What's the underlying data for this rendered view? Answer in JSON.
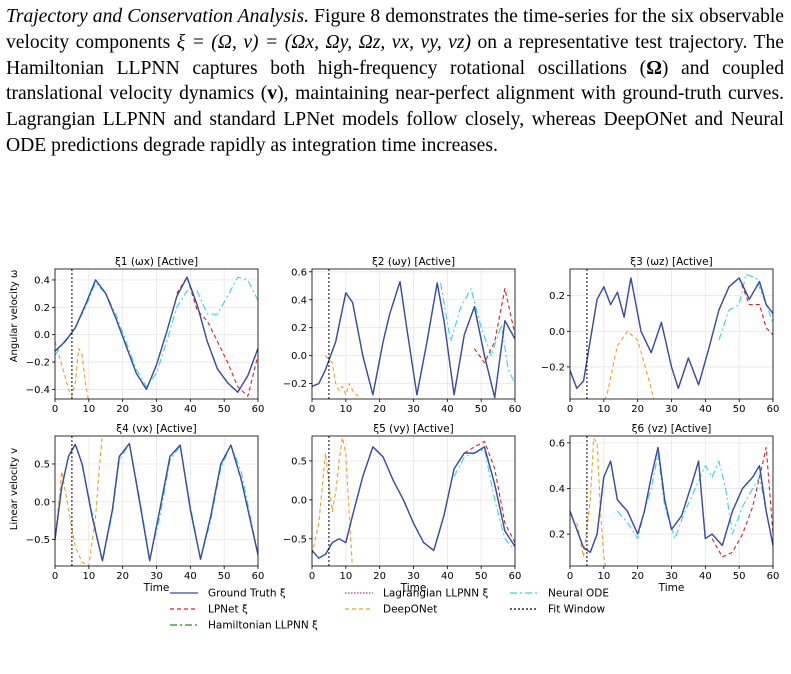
{
  "paragraph": {
    "lead": "Trajectory and Conservation Analysis.",
    "s1": " Figure 8 demonstrates the time-series for the six observable velocity components ",
    "s1_math": "ξ = (Ω, v) = (Ωx, Ωy, Ωz, vx, vy, vz)",
    "s2": " on a representative test trajectory. The Hamiltonian LLPNN captures both high-frequency rotational oscillations (",
    "s2_omega": "Ω",
    "s3": ") and coupled translational velocity dynamics (",
    "s3_v": "v",
    "s4": "), maintaining near-perfect alignment with ground-truth curves. Lagrangian LLPNN and standard LPNet models follow closely, whereas DeepONet and Neural ODE predictions degrade rapidly as integration time increases."
  },
  "figure": {
    "row_labels": [
      "Angular velocity ω",
      "Linear velocity v"
    ],
    "xlabel": "Time",
    "fit_window_end": 5,
    "xlim": [
      0,
      60
    ],
    "xticks": [
      0,
      10,
      20,
      30,
      40,
      50,
      60
    ]
  },
  "chart_data": [
    {
      "type": "line",
      "title": "ξ1 (ωx) [Active]",
      "ylim": [
        -0.47,
        0.48
      ],
      "yticks": [
        -0.4,
        -0.2,
        0.0,
        0.2,
        0.4
      ],
      "ytick_labels": [
        "−0.4",
        "−0.2",
        "0.0",
        "0.2",
        "0.4"
      ],
      "xlabel": "",
      "series": [
        {
          "name": "Ground Truth ξ",
          "x": [
            0,
            3,
            6,
            9,
            12,
            15,
            18,
            21,
            24,
            27,
            30,
            33,
            36,
            39,
            42,
            45,
            48,
            51,
            54,
            57,
            60
          ],
          "y": [
            -0.12,
            -0.05,
            0.05,
            0.22,
            0.4,
            0.3,
            0.12,
            -0.08,
            -0.28,
            -0.4,
            -0.22,
            0.02,
            0.28,
            0.42,
            0.22,
            -0.05,
            -0.25,
            -0.35,
            -0.42,
            -0.3,
            -0.1
          ]
        },
        {
          "name": "Neural ODE",
          "x": [
            0,
            3,
            6,
            9,
            12,
            15,
            18,
            21,
            24,
            27,
            30,
            33,
            36,
            39,
            42,
            45,
            48,
            51,
            54,
            57,
            60
          ],
          "y": [
            -0.15,
            -0.04,
            0.05,
            0.2,
            0.38,
            0.3,
            0.15,
            -0.05,
            -0.25,
            -0.38,
            -0.28,
            -0.05,
            0.2,
            0.32,
            0.32,
            0.15,
            0.15,
            0.28,
            0.42,
            0.4,
            0.25
          ]
        },
        {
          "name": "DeepONet",
          "x": [
            0,
            2,
            4,
            5,
            6,
            7,
            8,
            9,
            10
          ],
          "y": [
            -0.05,
            -0.22,
            -0.4,
            -0.45,
            -0.35,
            -0.1,
            -0.15,
            -0.35,
            -0.5
          ]
        },
        {
          "name": "LPNet ξ",
          "x": [
            36,
            39,
            42,
            45,
            48,
            51,
            54,
            57,
            60
          ],
          "y": [
            0.3,
            0.42,
            0.18,
            0.1,
            -0.05,
            -0.2,
            -0.38,
            -0.45,
            -0.15
          ]
        }
      ]
    },
    {
      "type": "line",
      "title": "ξ2 (ωy) [Active]",
      "ylim": [
        -0.31,
        0.62
      ],
      "yticks": [
        -0.2,
        0.0,
        0.2,
        0.4,
        0.6
      ],
      "ytick_labels": [
        "−0.2",
        "0.0",
        "0.2",
        "0.4",
        "0.6"
      ],
      "xlabel": "",
      "series": [
        {
          "name": "Ground Truth ξ",
          "x": [
            0,
            2,
            4,
            7,
            10,
            12,
            15,
            18,
            21,
            23,
            26,
            28,
            31,
            34,
            37,
            39,
            42,
            45,
            48,
            51,
            54,
            57,
            60
          ],
          "y": [
            -0.22,
            -0.2,
            -0.1,
            0.1,
            0.45,
            0.38,
            0.0,
            -0.28,
            0.1,
            0.3,
            0.53,
            0.2,
            -0.28,
            0.1,
            0.52,
            0.25,
            -0.28,
            0.15,
            0.35,
            0.0,
            -0.3,
            0.25,
            0.12
          ]
        },
        {
          "name": "Neural ODE",
          "x": [
            38,
            41,
            44,
            47,
            50,
            53,
            56,
            58,
            60
          ],
          "y": [
            0.52,
            0.1,
            0.35,
            0.48,
            0.2,
            0.0,
            0.22,
            -0.1,
            -0.2
          ]
        },
        {
          "name": "DeepONet",
          "x": [
            4,
            6,
            7,
            8,
            9,
            10,
            11,
            12,
            14
          ],
          "y": [
            0.0,
            -0.05,
            -0.2,
            -0.25,
            -0.22,
            -0.28,
            -0.2,
            -0.25,
            -0.3
          ]
        },
        {
          "name": "LPNet ξ",
          "x": [
            48,
            51,
            54,
            57,
            60
          ],
          "y": [
            0.05,
            -0.05,
            0.1,
            0.48,
            0.15
          ]
        }
      ]
    },
    {
      "type": "line",
      "title": "ξ3 (ωz) [Active]",
      "ylim": [
        -0.38,
        0.35
      ],
      "yticks": [
        -0.2,
        0.0,
        0.2
      ],
      "ytick_labels": [
        "−0.2",
        "0.0",
        "0.2"
      ],
      "xlabel": "",
      "series": [
        {
          "name": "Ground Truth ξ",
          "x": [
            0,
            2,
            4,
            6,
            8,
            10,
            12,
            14,
            16,
            18,
            21,
            24,
            27,
            30,
            32,
            35,
            38,
            41,
            44,
            47,
            50,
            53,
            56,
            58,
            60
          ],
          "y": [
            -0.22,
            -0.32,
            -0.28,
            -0.05,
            0.18,
            0.25,
            0.15,
            0.22,
            0.08,
            0.3,
            0.0,
            -0.12,
            0.05,
            -0.2,
            -0.32,
            -0.15,
            -0.3,
            -0.1,
            0.12,
            0.25,
            0.3,
            0.18,
            0.28,
            0.15,
            0.1
          ]
        },
        {
          "name": "Neural ODE",
          "x": [
            44,
            47,
            50,
            52,
            55,
            58,
            60
          ],
          "y": [
            -0.05,
            0.12,
            0.15,
            0.32,
            0.3,
            0.15,
            0.05
          ]
        },
        {
          "name": "DeepONet",
          "x": [
            5,
            8,
            11,
            14,
            17,
            20,
            23,
            25
          ],
          "y": [
            -0.4,
            -0.5,
            -0.35,
            -0.08,
            0.0,
            -0.05,
            -0.25,
            -0.4
          ]
        },
        {
          "name": "LPNet ξ",
          "x": [
            50,
            53,
            56,
            58,
            60
          ],
          "y": [
            0.3,
            0.15,
            0.15,
            0.02,
            -0.02
          ]
        }
      ]
    },
    {
      "type": "line",
      "title": "ξ4 (vx) [Active]",
      "ylim": [
        -0.85,
        0.87
      ],
      "yticks": [
        -0.5,
        0.0,
        0.5
      ],
      "ytick_labels": [
        "−0.5",
        "0.0",
        "0.5"
      ],
      "xlabel": "Time",
      "series": [
        {
          "name": "Ground Truth ξ",
          "x": [
            0,
            2,
            4,
            6,
            8,
            11,
            14,
            17,
            19,
            22,
            25,
            28,
            31,
            34,
            37,
            40,
            43,
            46,
            49,
            52,
            55,
            58,
            60
          ],
          "y": [
            -0.5,
            0.2,
            0.6,
            0.76,
            0.5,
            -0.2,
            -0.78,
            -0.1,
            0.6,
            0.77,
            0.0,
            -0.78,
            -0.1,
            0.6,
            0.75,
            -0.1,
            -0.76,
            -0.2,
            0.5,
            0.75,
            0.3,
            -0.3,
            -0.7
          ]
        },
        {
          "name": "Neural ODE",
          "x": [
            0,
            2,
            4,
            6,
            8,
            11,
            14,
            17,
            19,
            22,
            25,
            28,
            31,
            34,
            37,
            40,
            43,
            46,
            49,
            52,
            55,
            58,
            60
          ],
          "y": [
            -0.5,
            0.2,
            0.6,
            0.76,
            0.5,
            -0.15,
            -0.8,
            -0.15,
            0.55,
            0.77,
            0.05,
            -0.76,
            -0.2,
            0.55,
            0.74,
            -0.05,
            -0.76,
            -0.25,
            0.45,
            0.75,
            0.4,
            -0.25,
            -0.7
          ]
        },
        {
          "name": "DeepONet",
          "x": [
            0,
            2,
            4,
            6,
            8,
            10,
            12,
            13,
            14
          ],
          "y": [
            -0.5,
            0.4,
            -0.1,
            -0.6,
            -0.8,
            -0.85,
            -0.2,
            0.4,
            0.9
          ]
        }
      ]
    },
    {
      "type": "line",
      "title": "ξ5 (vy) [Active]",
      "ylim": [
        -0.85,
        0.82
      ],
      "yticks": [
        -0.5,
        0.0,
        0.5
      ],
      "ytick_labels": [
        "−0.5",
        "0.0",
        "0.5"
      ],
      "xlabel": "Time",
      "series": [
        {
          "name": "Ground Truth ξ",
          "x": [
            0,
            2,
            4,
            6,
            8,
            10,
            12,
            15,
            18,
            21,
            24,
            27,
            30,
            33,
            36,
            39,
            42,
            45,
            48,
            51,
            54,
            57,
            60
          ],
          "y": [
            -0.65,
            -0.75,
            -0.7,
            -0.55,
            -0.5,
            -0.55,
            -0.2,
            0.3,
            0.68,
            0.55,
            0.25,
            0.0,
            -0.3,
            -0.55,
            -0.65,
            -0.2,
            0.4,
            0.6,
            0.6,
            0.68,
            0.2,
            -0.4,
            -0.6
          ]
        },
        {
          "name": "Neural ODE",
          "x": [
            42,
            45,
            48,
            51,
            54,
            57,
            60
          ],
          "y": [
            0.3,
            0.55,
            0.6,
            0.65,
            0.0,
            -0.5,
            -0.65
          ]
        },
        {
          "name": "DeepONet",
          "x": [
            0,
            2,
            4,
            5,
            6,
            7,
            8,
            9,
            10,
            11,
            12
          ],
          "y": [
            -0.7,
            -0.3,
            0.6,
            0.2,
            -0.15,
            0.1,
            0.5,
            0.8,
            0.6,
            -0.2,
            -0.9
          ]
        },
        {
          "name": "LPNet ξ",
          "x": [
            45,
            48,
            51,
            54,
            57,
            60
          ],
          "y": [
            0.6,
            0.68,
            0.75,
            0.4,
            -0.3,
            -0.55
          ]
        }
      ]
    },
    {
      "type": "line",
      "title": "ξ6 (vz) [Active]",
      "ylim": [
        0.06,
        0.63
      ],
      "yticks": [
        0.2,
        0.4,
        0.6
      ],
      "ytick_labels": [
        "0.2",
        "0.4",
        "0.6"
      ],
      "xlabel": "Time",
      "series": [
        {
          "name": "Ground Truth ξ",
          "x": [
            0,
            2,
            4,
            6,
            8,
            10,
            12,
            14,
            17,
            20,
            22,
            24,
            26,
            28,
            30,
            33,
            36,
            38,
            40,
            42,
            45,
            48,
            51,
            54,
            56,
            58,
            60
          ],
          "y": [
            0.3,
            0.22,
            0.14,
            0.12,
            0.2,
            0.45,
            0.52,
            0.35,
            0.3,
            0.2,
            0.3,
            0.45,
            0.58,
            0.35,
            0.22,
            0.28,
            0.42,
            0.52,
            0.18,
            0.2,
            0.15,
            0.3,
            0.4,
            0.45,
            0.5,
            0.3,
            0.15
          ]
        },
        {
          "name": "Neural ODE",
          "x": [
            14,
            17,
            20,
            22,
            24,
            26,
            28,
            31,
            34,
            37,
            40,
            42,
            44,
            46,
            48,
            51,
            54,
            56,
            58,
            60
          ],
          "y": [
            0.3,
            0.25,
            0.18,
            0.3,
            0.4,
            0.55,
            0.32,
            0.18,
            0.3,
            0.4,
            0.5,
            0.45,
            0.52,
            0.4,
            0.2,
            0.32,
            0.4,
            0.45,
            0.3,
            0.15
          ]
        },
        {
          "name": "DeepONet",
          "x": [
            2,
            4,
            6,
            7,
            8,
            9,
            10,
            11
          ],
          "y": [
            0.25,
            0.1,
            0.35,
            0.62,
            0.6,
            0.3,
            0.1,
            0.02
          ]
        },
        {
          "name": "LPNet ξ",
          "x": [
            42,
            45,
            48,
            51,
            54,
            56,
            58,
            60
          ],
          "y": [
            0.18,
            0.1,
            0.12,
            0.2,
            0.32,
            0.45,
            0.58,
            0.2
          ]
        }
      ]
    }
  ],
  "legend": [
    {
      "label": "Ground Truth ξ",
      "color": "#3b4ba8",
      "dash": "none"
    },
    {
      "label": "LPNet ξ",
      "color": "#e02020",
      "dash": "4,3"
    },
    {
      "label": "Hamiltonian LLPNN ξ",
      "color": "#1f8f2a",
      "dash": "7,3,2,3"
    },
    {
      "label": "Lagrangian LLPNN ξ",
      "color": "#b030b0",
      "dash": "1.5,1.5"
    },
    {
      "label": "DeepONet",
      "color": "#f0a020",
      "dash": "4,3"
    },
    {
      "label": "Neural ODE",
      "color": "#30d8e8",
      "dash": "7,3,2,3"
    },
    {
      "label": "Fit Window",
      "color": "#000000",
      "dash": "2,2"
    }
  ]
}
